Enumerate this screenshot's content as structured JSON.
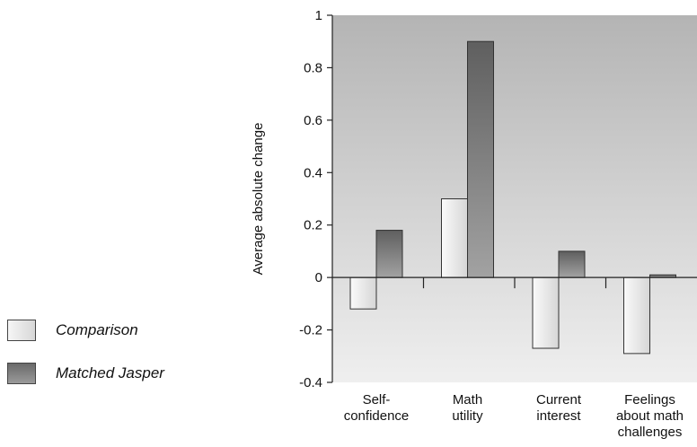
{
  "chart_data": {
    "type": "bar",
    "title": "",
    "xlabel": "",
    "ylabel": "Average absolute change",
    "ylim": [
      -0.4,
      1
    ],
    "yticks": [
      1,
      0.8,
      0.6,
      0.4,
      0.2,
      0,
      -0.2,
      -0.4
    ],
    "ytick_labels": [
      "1",
      "0.8",
      "0.6",
      "0.4",
      "0.2",
      "0",
      "-0.2",
      "-0.4"
    ],
    "categories": [
      [
        "Self-",
        "confidence"
      ],
      [
        "Math",
        "utility"
      ],
      [
        "Current",
        "interest"
      ],
      [
        "Feelings",
        "about math",
        "challenges"
      ]
    ],
    "series": [
      {
        "name": "Comparison",
        "values": [
          -0.12,
          0.3,
          -0.27,
          -0.29
        ]
      },
      {
        "name": "Matched Jasper",
        "values": [
          0.18,
          0.9,
          0.1,
          0.01
        ]
      }
    ],
    "grid": false,
    "legend_position": "left"
  },
  "legend": {
    "items": [
      {
        "label": "Comparison"
      },
      {
        "label": "Matched Jasper"
      }
    ]
  }
}
